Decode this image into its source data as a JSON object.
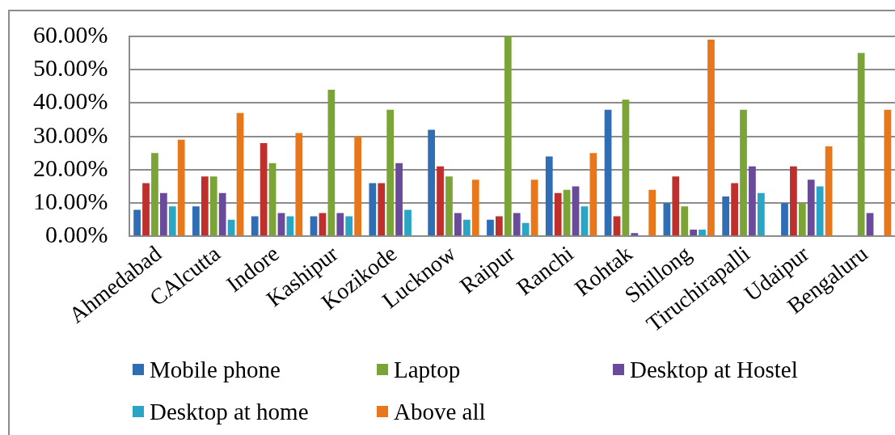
{
  "chart_data": {
    "type": "bar",
    "categories": [
      "Ahmedabad",
      "CAlcutta",
      "Indore",
      "Kashipur",
      "Kozikode",
      "Lucknow",
      "Raipur",
      "Ranchi",
      "Rohtak",
      "Shillong",
      "Tiruchirapalli",
      "Udaipur",
      "Bengaluru"
    ],
    "series": [
      {
        "name": "Mobile phone",
        "color": "#2f6db4",
        "values": [
          8,
          9,
          6,
          6,
          16,
          32,
          5,
          24,
          38,
          10,
          12,
          10,
          0
        ]
      },
      {
        "color": "#bf2f2c",
        "values": [
          16,
          18,
          28,
          7,
          16,
          21,
          6,
          13,
          6,
          18,
          16,
          21,
          0
        ]
      },
      {
        "name": "Laptop",
        "color": "#7ba436",
        "values": [
          25,
          18,
          22,
          44,
          38,
          18,
          60,
          14,
          41,
          9,
          38,
          10,
          55
        ]
      },
      {
        "name": "Desktop at Hostel",
        "color": "#6a4b9b",
        "values": [
          13,
          13,
          7,
          7,
          22,
          7,
          7,
          15,
          1,
          2,
          21,
          17,
          7
        ]
      },
      {
        "name": "Desktop at home",
        "color": "#2aa5c4",
        "values": [
          9,
          5,
          6,
          6,
          8,
          5,
          4,
          9,
          0,
          2,
          13,
          15,
          0
        ]
      },
      {
        "name": "Above all",
        "color": "#e8771c",
        "values": [
          29,
          37,
          31,
          30,
          0,
          17,
          17,
          25,
          14,
          59,
          0,
          27,
          38
        ]
      }
    ],
    "ylim": [
      0,
      60
    ],
    "yticks": [
      {
        "value": 0,
        "label": "0.00%"
      },
      {
        "value": 10,
        "label": "10.00%"
      },
      {
        "value": 20,
        "label": "20.00%"
      },
      {
        "value": 30,
        "label": "30.00%"
      },
      {
        "value": 40,
        "label": "40.00%"
      },
      {
        "value": 50,
        "label": "50.00%"
      },
      {
        "value": 60,
        "label": "60.00%"
      }
    ],
    "grid": "y",
    "legend": "bottom"
  }
}
